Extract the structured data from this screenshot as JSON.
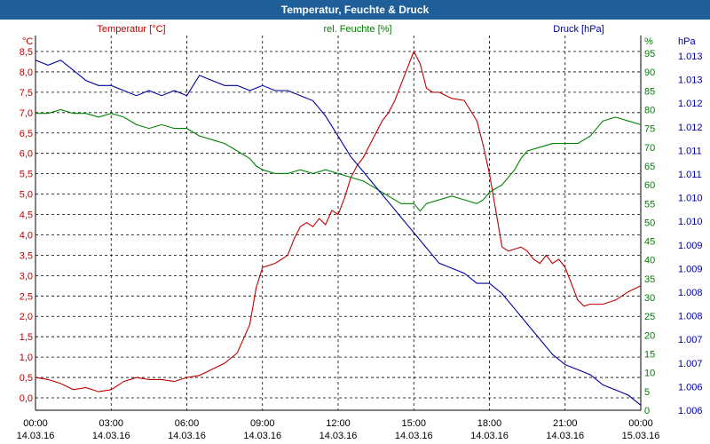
{
  "window": {
    "title": "Temperatur, Feuchte & Druck"
  },
  "chart_data": {
    "type": "line",
    "title": "Temperatur, Feuchte & Druck",
    "x_ticks": [
      {
        "time": "00:00",
        "date": "14.03.16"
      },
      {
        "time": "03:00",
        "date": "14.03.16"
      },
      {
        "time": "06:00",
        "date": "14.03.16"
      },
      {
        "time": "09:00",
        "date": "14.03.16"
      },
      {
        "time": "12:00",
        "date": "14.03.16"
      },
      {
        "time": "15:00",
        "date": "14.03.16"
      },
      {
        "time": "18:00",
        "date": "14.03.16"
      },
      {
        "time": "21:00",
        "date": "14.03.16"
      },
      {
        "time": "00:00",
        "date": "15.03.16"
      }
    ],
    "x_range_hours": [
      0,
      24
    ],
    "grid": true,
    "axes": {
      "temperature": {
        "unit": "°C",
        "range": [
          0,
          8.5
        ],
        "ticks": [
          "0,0",
          "0,5",
          "1,0",
          "1,5",
          "2,0",
          "2,5",
          "3,0",
          "3,5",
          "4,0",
          "4,5",
          "5,0",
          "5,5",
          "6,0",
          "6,5",
          "7,0",
          "7,5",
          "8,0",
          "8,5"
        ]
      },
      "humidity": {
        "unit": "%",
        "range": [
          0,
          95
        ],
        "ticks": [
          "0",
          "5",
          "10",
          "15",
          "20",
          "25",
          "30",
          "35",
          "40",
          "45",
          "50",
          "55",
          "60",
          "65",
          "70",
          "75",
          "80",
          "85",
          "90",
          "95"
        ]
      },
      "pressure": {
        "unit": "hPa",
        "range": [
          1006,
          1013
        ],
        "ticks": [
          "1.006",
          "1.006",
          "1.007",
          "1.007",
          "1.008",
          "1.008",
          "1.009",
          "1.009",
          "1.010",
          "1.010",
          "1.011",
          "1.011",
          "1.012",
          "1.012",
          "1.013",
          "1.013"
        ]
      }
    },
    "series": [
      {
        "name": "Temperatur [°C]",
        "color": "#c00000",
        "axis": "temperature",
        "x": [
          0,
          0.5,
          1,
          1.5,
          2,
          2.5,
          3,
          3.5,
          4,
          4.5,
          5,
          5.5,
          6,
          6.5,
          7,
          7.5,
          8,
          8.5,
          8.75,
          9,
          9.5,
          10,
          10.25,
          10.5,
          10.75,
          11,
          11.25,
          11.5,
          11.75,
          12,
          12.25,
          12.5,
          12.75,
          13,
          13.25,
          13.5,
          13.75,
          14,
          14.25,
          14.5,
          14.75,
          15,
          15.25,
          15.5,
          15.75,
          16,
          16.5,
          17,
          17.5,
          17.75,
          18,
          18.25,
          18.5,
          18.75,
          19,
          19.25,
          19.5,
          19.75,
          20,
          20.25,
          20.5,
          20.75,
          21,
          21.25,
          21.5,
          21.75,
          22,
          22.5,
          23,
          23.5,
          24
        ],
        "values": [
          0.5,
          0.45,
          0.35,
          0.2,
          0.25,
          0.15,
          0.2,
          0.4,
          0.5,
          0.45,
          0.45,
          0.4,
          0.5,
          0.55,
          0.7,
          0.85,
          1.1,
          1.8,
          2.7,
          3.2,
          3.3,
          3.5,
          3.9,
          4.2,
          4.3,
          4.2,
          4.4,
          4.25,
          4.6,
          4.5,
          4.9,
          5.4,
          5.7,
          5.9,
          6.2,
          6.5,
          6.8,
          7.0,
          7.3,
          7.7,
          8.1,
          8.5,
          8.2,
          7.6,
          7.5,
          7.5,
          7.35,
          7.3,
          6.8,
          6.2,
          5.5,
          4.6,
          3.7,
          3.6,
          3.65,
          3.7,
          3.6,
          3.4,
          3.3,
          3.5,
          3.3,
          3.4,
          3.2,
          2.8,
          2.4,
          2.25,
          2.3,
          2.3,
          2.4,
          2.6,
          2.75
        ]
      },
      {
        "name": "rel. Feuchte [%]",
        "color": "#008000",
        "axis": "humidity",
        "x": [
          0,
          0.5,
          1,
          1.5,
          2,
          2.5,
          3,
          3.5,
          4,
          4.5,
          5,
          5.5,
          6,
          6.5,
          7,
          7.5,
          8,
          8.5,
          8.75,
          9,
          9.5,
          10,
          10.5,
          11,
          11.5,
          12,
          12.5,
          13,
          13.5,
          14,
          14.5,
          15,
          15.25,
          15.5,
          16,
          16.5,
          17,
          17.5,
          17.75,
          18,
          18.5,
          19,
          19.25,
          19.5,
          20,
          20.5,
          21,
          21.5,
          22,
          22.5,
          23,
          23.5,
          24
        ],
        "values": [
          79,
          79,
          80,
          79,
          79,
          78,
          79,
          78,
          76,
          75,
          76,
          75,
          75,
          73,
          72,
          71,
          69,
          67,
          65,
          64,
          63,
          63,
          64,
          63,
          64,
          63,
          62,
          61,
          59,
          57,
          55,
          55,
          53,
          55,
          56,
          57,
          56,
          55,
          56,
          58,
          60,
          64,
          67,
          69,
          70,
          71,
          71,
          71,
          73,
          77,
          78,
          77,
          76
        ]
      },
      {
        "name": "Druck [hPa]",
        "color": "#0000a0",
        "axis": "pressure",
        "x": [
          0,
          0.5,
          1,
          1.5,
          2,
          2.5,
          3,
          3.5,
          4,
          4.5,
          5,
          5.5,
          6,
          6.5,
          7,
          7.5,
          8,
          8.5,
          9,
          9.5,
          10,
          10.5,
          11,
          11.5,
          12,
          12.5,
          13,
          13.5,
          14,
          14.5,
          15,
          15.5,
          16,
          16.5,
          17,
          17.5,
          18,
          18.5,
          19,
          19.5,
          20,
          20.5,
          21,
          21.5,
          22,
          22.5,
          23,
          23.5,
          24
        ],
        "values": [
          1012.9,
          1012.8,
          1012.9,
          1012.7,
          1012.5,
          1012.4,
          1012.4,
          1012.3,
          1012.2,
          1012.3,
          1012.2,
          1012.3,
          1012.2,
          1012.6,
          1012.5,
          1012.4,
          1012.4,
          1012.3,
          1012.4,
          1012.3,
          1012.3,
          1012.2,
          1012.1,
          1011.8,
          1011.4,
          1011.0,
          1010.7,
          1010.4,
          1010.1,
          1009.8,
          1009.5,
          1009.2,
          1008.9,
          1008.8,
          1008.7,
          1008.5,
          1008.5,
          1008.3,
          1008.0,
          1007.7,
          1007.4,
          1007.1,
          1006.9,
          1006.8,
          1006.7,
          1006.5,
          1006.4,
          1006.3,
          1006.1
        ]
      }
    ],
    "axis_titles": {
      "temperature": "Temperatur [°C]",
      "humidity": "rel. Feuchte [%]",
      "pressure": "Druck [hPa]"
    },
    "unit_labels": {
      "temperature": "°C",
      "humidity": "%",
      "pressure": "hPa"
    },
    "colors": {
      "temperature": "#c00000",
      "humidity": "#008000",
      "pressure": "#0000a0",
      "titlebar": "#1e5f9a"
    }
  }
}
